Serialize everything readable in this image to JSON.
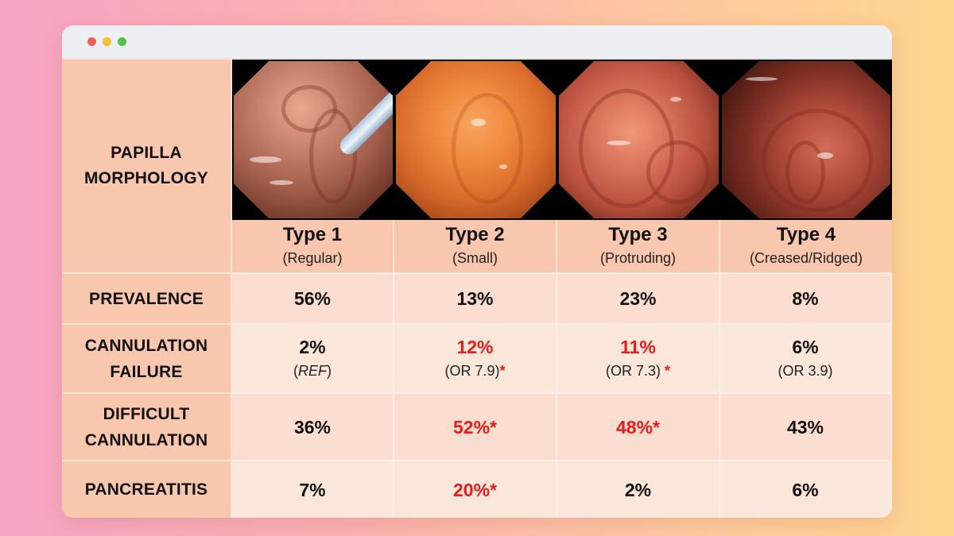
{
  "header_label": "PAPILLA\nMORPHOLOGY",
  "types": [
    {
      "title": "Type 1",
      "subtitle": "(Regular)",
      "image": "endoscopic-papilla-regular"
    },
    {
      "title": "Type 2",
      "subtitle": "(Small)",
      "image": "endoscopic-papilla-small"
    },
    {
      "title": "Type 3",
      "subtitle": "(Protruding)",
      "image": "endoscopic-papilla-protruding"
    },
    {
      "title": "Type 4",
      "subtitle": "(Creased/Ridged)",
      "image": "endoscopic-papilla-creased"
    }
  ],
  "rows": [
    {
      "label": "PREVALENCE",
      "cells": [
        {
          "value": "56%",
          "highlight": false
        },
        {
          "value": "13%",
          "highlight": false
        },
        {
          "value": "23%",
          "highlight": false
        },
        {
          "value": "8%",
          "highlight": false
        }
      ]
    },
    {
      "label": "CANNULATION\nFAILURE",
      "cells": [
        {
          "value": "2%",
          "highlight": false,
          "note_pre": "(",
          "note_em": "REF",
          "note_post": ")",
          "star": ""
        },
        {
          "value": "12%",
          "highlight": true,
          "note_pre": "(OR 7.9)",
          "note_em": "",
          "note_post": "",
          "star": "*"
        },
        {
          "value": "11%",
          "highlight": true,
          "note_pre": "(OR 7.3) ",
          "note_em": "",
          "note_post": "",
          "star": "*"
        },
        {
          "value": "6%",
          "highlight": false,
          "note_pre": "(OR 3.9)",
          "note_em": "",
          "note_post": "",
          "star": ""
        }
      ]
    },
    {
      "label": "DIFFICULT\nCANNULATION",
      "cells": [
        {
          "value": "36%",
          "highlight": false
        },
        {
          "value": "52%*",
          "highlight": true
        },
        {
          "value": "48%*",
          "highlight": true
        },
        {
          "value": "43%",
          "highlight": false
        }
      ]
    },
    {
      "label": "PANCREATITIS",
      "cells": [
        {
          "value": "7%",
          "highlight": false
        },
        {
          "value": "20%*",
          "highlight": true
        },
        {
          "value": "2%",
          "highlight": false
        },
        {
          "value": "6%",
          "highlight": false
        }
      ]
    }
  ],
  "colors": {
    "highlight": "#ea1b1b",
    "label_bg": "#f9c7ad",
    "row_a": "#fcded0",
    "row_b": "#fbe6da"
  }
}
